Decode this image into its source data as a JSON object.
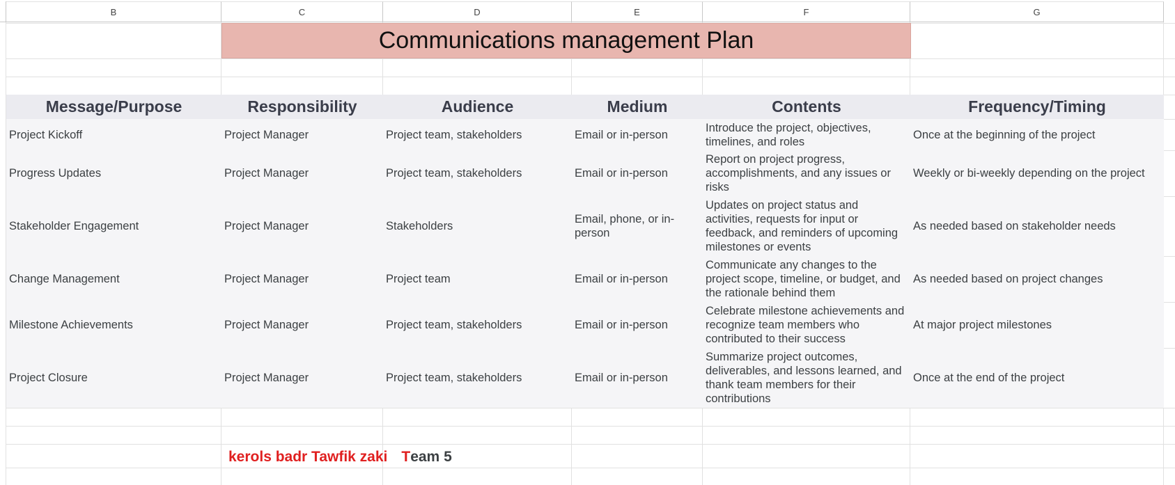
{
  "columns": [
    "B",
    "C",
    "D",
    "E",
    "F",
    "G"
  ],
  "title": "Communications management Plan",
  "headers": [
    "Message/Purpose",
    "Responsibility",
    "Audience",
    "Medium",
    "Contents",
    "Frequency/Timing"
  ],
  "rows": [
    {
      "purpose": "Project Kickoff",
      "responsibility": "Project Manager",
      "audience": "Project team, stakeholders",
      "medium": "Email or in-person",
      "contents": "Introduce the project, objectives, timelines, and roles",
      "frequency": "Once at the beginning of the project"
    },
    {
      "purpose": "Progress Updates",
      "responsibility": "Project Manager",
      "audience": "Project team, stakeholders",
      "medium": "Email or in-person",
      "contents": "Report on project progress, accomplishments, and any issues or risks",
      "frequency": "Weekly or bi-weekly depending on the project"
    },
    {
      "purpose": "Stakeholder Engagement",
      "responsibility": "Project Manager",
      "audience": "Stakeholders",
      "medium": "Email, phone, or in-person",
      "contents": "Updates on project status and activities, requests for input or feedback, and reminders of upcoming milestones or events",
      "frequency": "As needed based on stakeholder needs"
    },
    {
      "purpose": "Change Management",
      "responsibility": "Project Manager",
      "audience": "Project team",
      "medium": "Email or in-person",
      "contents": "Communicate any changes to the project scope, timeline, or budget, and the rationale behind them",
      "frequency": "As needed based on project changes"
    },
    {
      "purpose": "Milestone Achievements",
      "responsibility": "Project Manager",
      "audience": "Project team, stakeholders",
      "medium": "Email or in-person",
      "contents": "Celebrate milestone achievements and recognize team members who contributed to their success",
      "frequency": "At major project milestones"
    },
    {
      "purpose": "Project Closure",
      "responsibility": "Project Manager",
      "audience": "Project team, stakeholders",
      "medium": "Email or in-person",
      "contents": "Summarize project outcomes, deliverables, and lessons learned, and thank team members for their contributions",
      "frequency": "Once at the end of the project"
    }
  ],
  "signature": {
    "name": "kerols badr Tawfik zaki",
    "team_initial": "T",
    "team_rest": "eam 5"
  },
  "colors": {
    "title_fill": "#e8b6af",
    "header_fill": "#ebebf0",
    "row_fill": "#f5f5f7",
    "signature": "#e02020"
  }
}
